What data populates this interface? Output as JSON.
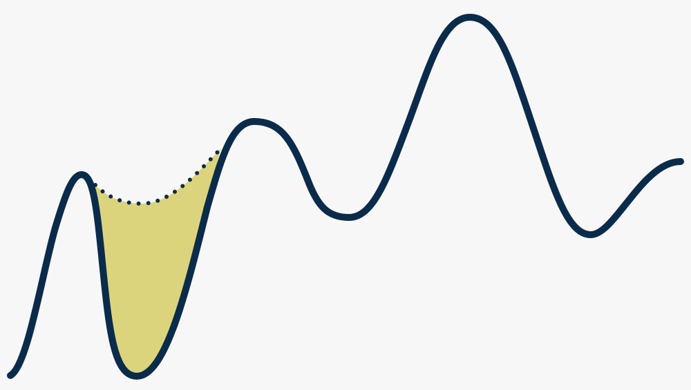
{
  "colors": {
    "background": "#f7f7f7",
    "curve": "#0b2b4a",
    "shaded_region": "#dbd47c"
  }
}
